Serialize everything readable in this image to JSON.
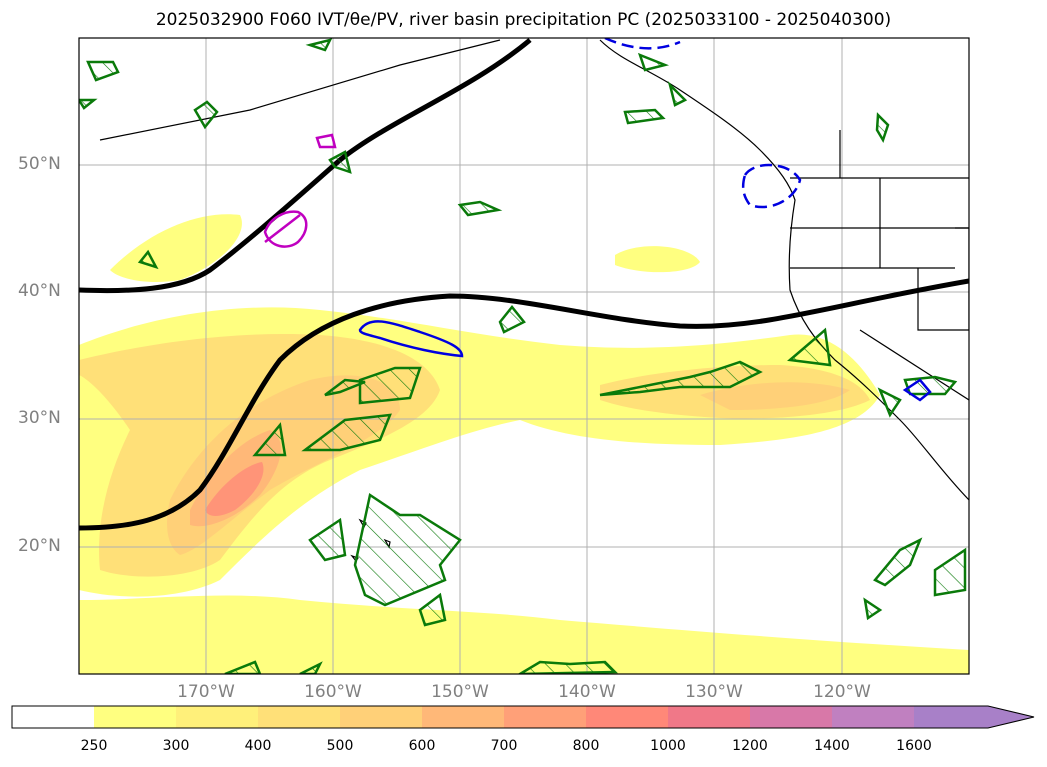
{
  "title": "2025032900 F060 IVT/θe/PV, river basin precipitation PC (2025033100 - 2025040300)",
  "map": {
    "lat_labels": [
      "50°N",
      "40°N",
      "30°N",
      "20°N"
    ],
    "lon_labels": [
      "170°W",
      "160°W",
      "150°W",
      "140°W",
      "130°W",
      "120°W"
    ]
  },
  "colorbar": {
    "levels": [
      "250",
      "300",
      "400",
      "500",
      "600",
      "700",
      "800",
      "1000",
      "1200",
      "1400",
      "1600"
    ],
    "colors": [
      "#ffffff",
      "#ffff80",
      "#fff07a",
      "#ffe078",
      "#ffd078",
      "#ffb878",
      "#ffa078",
      "#ff8878",
      "#f07888",
      "#d878a8",
      "#c080c0",
      "#a880c8"
    ]
  }
}
